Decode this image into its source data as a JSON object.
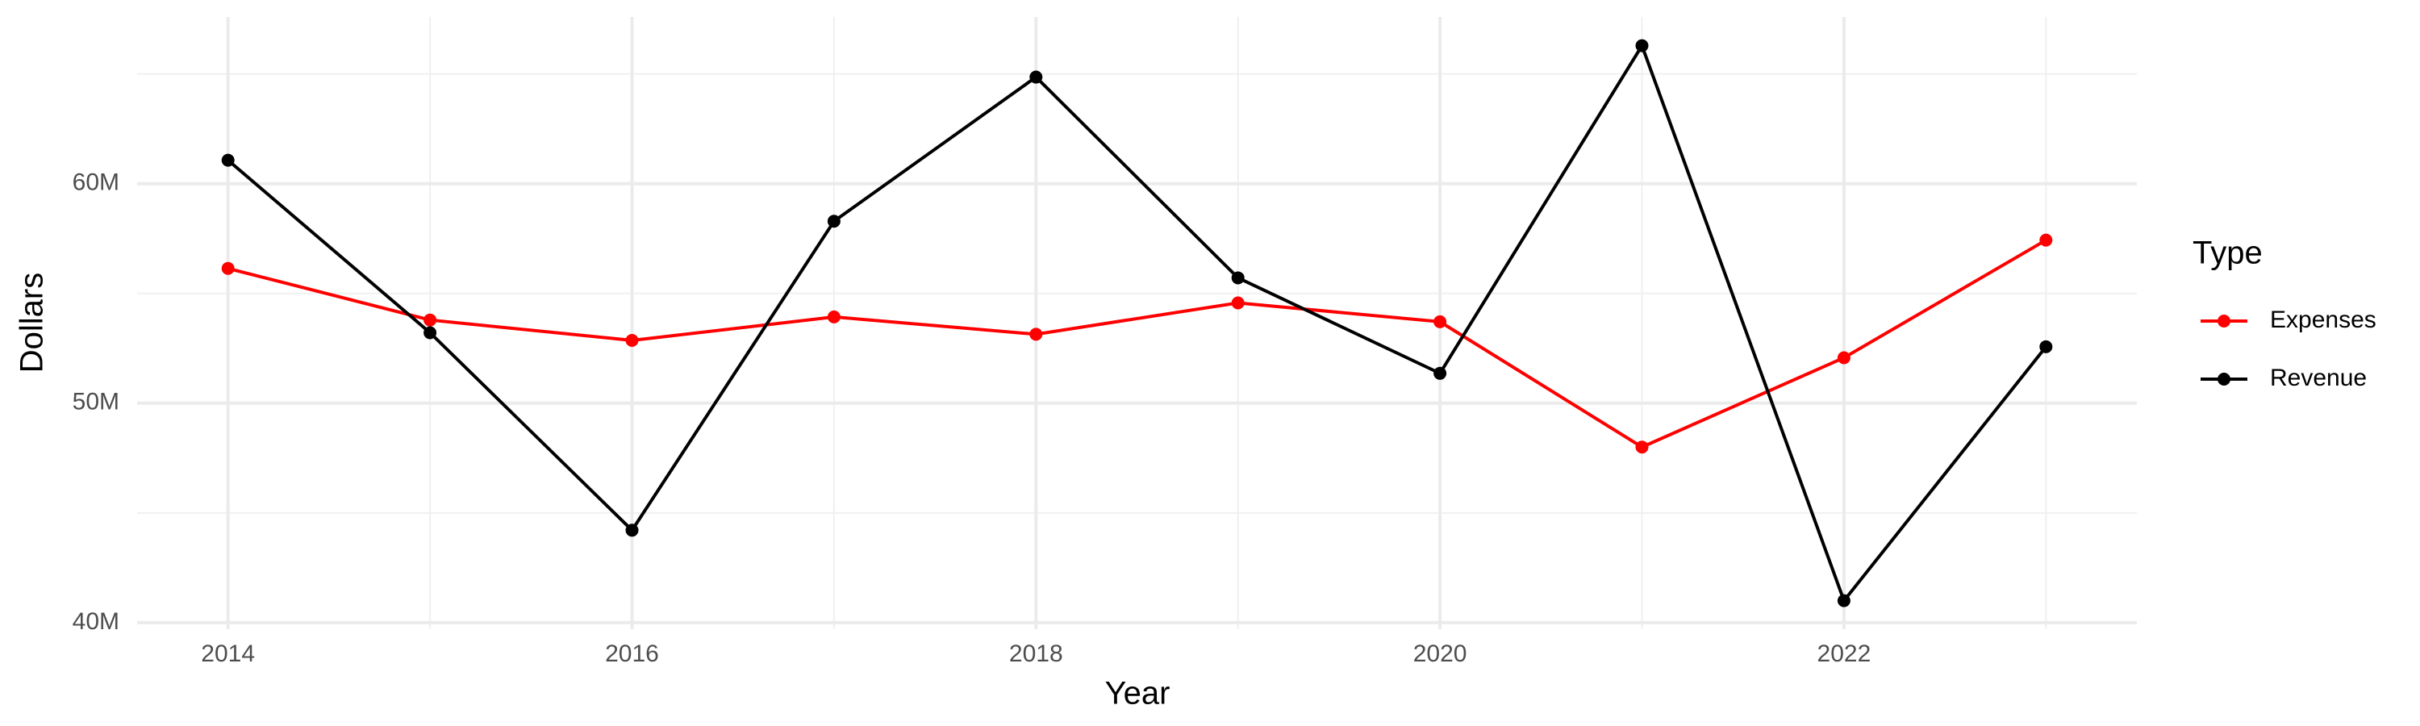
{
  "chart_data": {
    "type": "line",
    "x_label": "Year",
    "y_label": "Dollars",
    "legend_title": "Type",
    "x": [
      2014,
      2015,
      2016,
      2017,
      2018,
      2019,
      2020,
      2021,
      2022,
      2023
    ],
    "series": [
      {
        "name": "Expenses",
        "color": "#ff0000",
        "values": [
          56140000,
          53790000,
          52860000,
          53930000,
          53140000,
          54570000,
          53710000,
          48000000,
          52070000,
          57430000
        ]
      },
      {
        "name": "Revenue",
        "color": "#000000",
        "values": [
          61070000,
          53210000,
          44210000,
          58290000,
          64860000,
          55710000,
          51360000,
          66290000,
          41000000,
          52570000
        ]
      }
    ],
    "xlim": [
      2013.55,
      2023.45
    ],
    "xticks": [
      2014,
      2016,
      2018,
      2020,
      2022
    ],
    "ylim": [
      39700000,
      67600000
    ],
    "yticks": [
      {
        "value": 40000000,
        "label": "40M"
      },
      {
        "value": 50000000,
        "label": "50M"
      },
      {
        "value": 60000000,
        "label": "60M"
      }
    ],
    "grid": true,
    "legend": "right"
  }
}
